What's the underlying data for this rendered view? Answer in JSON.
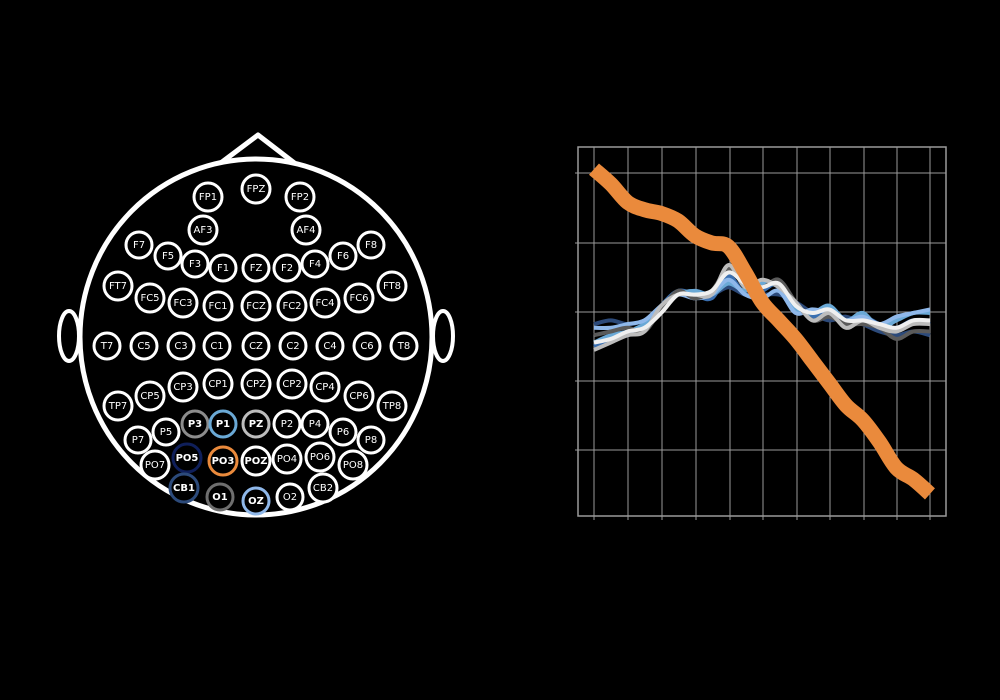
{
  "colors": {
    "background": "#000000",
    "head_outline": "#ffffff",
    "electrode_default": "#ffffff",
    "grid": "#9a9a9a",
    "accent_orange": "#ea8a3c"
  },
  "electrodes": [
    {
      "label": "FP1"
    },
    {
      "label": "FPZ"
    },
    {
      "label": "FP2"
    },
    {
      "label": "AF3"
    },
    {
      "label": "AF4"
    },
    {
      "label": "F7"
    },
    {
      "label": "F5"
    },
    {
      "label": "F3"
    },
    {
      "label": "F1"
    },
    {
      "label": "FZ"
    },
    {
      "label": "F2"
    },
    {
      "label": "F4"
    },
    {
      "label": "F6"
    },
    {
      "label": "F8"
    },
    {
      "label": "FT7"
    },
    {
      "label": "FC5"
    },
    {
      "label": "FC3"
    },
    {
      "label": "FC1"
    },
    {
      "label": "FCZ"
    },
    {
      "label": "FC2"
    },
    {
      "label": "FC4"
    },
    {
      "label": "FC6"
    },
    {
      "label": "FT8"
    },
    {
      "label": "T7"
    },
    {
      "label": "C5"
    },
    {
      "label": "C3"
    },
    {
      "label": "C1"
    },
    {
      "label": "CZ"
    },
    {
      "label": "C2"
    },
    {
      "label": "C4"
    },
    {
      "label": "C6"
    },
    {
      "label": "T8"
    },
    {
      "label": "TP7"
    },
    {
      "label": "CP5"
    },
    {
      "label": "CP3"
    },
    {
      "label": "CP1"
    },
    {
      "label": "CPZ"
    },
    {
      "label": "CP2"
    },
    {
      "label": "CP4"
    },
    {
      "label": "CP6"
    },
    {
      "label": "TP8"
    },
    {
      "label": "P7"
    },
    {
      "label": "P5"
    },
    {
      "label": "P3",
      "color": "#8c8c8c",
      "bold": true
    },
    {
      "label": "P1",
      "color": "#6aa9d6",
      "bold": true
    },
    {
      "label": "PZ",
      "color": "#bdbdbd",
      "bold": true
    },
    {
      "label": "P2"
    },
    {
      "label": "P4"
    },
    {
      "label": "P6"
    },
    {
      "label": "P8"
    },
    {
      "label": "PO7"
    },
    {
      "label": "PO5",
      "color": "#0f1f5a",
      "bold": true
    },
    {
      "label": "PO3",
      "color": "#ea8a3c",
      "bold": true
    },
    {
      "label": "POZ",
      "bold": true
    },
    {
      "label": "PO4"
    },
    {
      "label": "PO6"
    },
    {
      "label": "PO8"
    },
    {
      "label": "CB1",
      "color": "#2c4a7a",
      "bold": true
    },
    {
      "label": "O1",
      "color": "#6e6e6e",
      "bold": true
    },
    {
      "label": "OZ",
      "color": "#8fb8ea",
      "bold": true
    },
    {
      "label": "O2"
    },
    {
      "label": "CB2"
    }
  ],
  "chart_data": {
    "type": "line",
    "x_range": [
      0,
      1
    ],
    "y_range": [
      0,
      1
    ],
    "grid": true,
    "series": [
      {
        "color": "#2c4a7a",
        "width": 4,
        "x": [
          0,
          0.05,
          0.1,
          0.15,
          0.2,
          0.25,
          0.3,
          0.35,
          0.4,
          0.45,
          0.5,
          0.55,
          0.6,
          0.65,
          0.7,
          0.75,
          0.8,
          0.85,
          0.9,
          0.95,
          1.0
        ],
        "y": [
          0.52,
          0.53,
          0.52,
          0.53,
          0.56,
          0.6,
          0.61,
          0.6,
          0.62,
          0.6,
          0.6,
          0.6,
          0.58,
          0.55,
          0.53,
          0.54,
          0.52,
          0.5,
          0.49,
          0.5,
          0.49
        ]
      },
      {
        "color": "#3a6fb0",
        "width": 4,
        "x": [
          0,
          0.05,
          0.1,
          0.15,
          0.2,
          0.25,
          0.3,
          0.35,
          0.4,
          0.45,
          0.5,
          0.55,
          0.6,
          0.65,
          0.7,
          0.75,
          0.8,
          0.85,
          0.9,
          0.95,
          1.0
        ],
        "y": [
          0.46,
          0.48,
          0.49,
          0.51,
          0.57,
          0.61,
          0.6,
          0.59,
          0.65,
          0.6,
          0.61,
          0.63,
          0.57,
          0.54,
          0.56,
          0.52,
          0.54,
          0.52,
          0.51,
          0.53,
          0.52
        ]
      },
      {
        "color": "#6aa9d6",
        "width": 4,
        "x": [
          0,
          0.05,
          0.1,
          0.15,
          0.2,
          0.25,
          0.3,
          0.35,
          0.4,
          0.45,
          0.5,
          0.55,
          0.6,
          0.65,
          0.7,
          0.75,
          0.8,
          0.85,
          0.9,
          0.95,
          1.0
        ],
        "y": [
          0.47,
          0.49,
          0.5,
          0.52,
          0.56,
          0.6,
          0.61,
          0.6,
          0.63,
          0.61,
          0.63,
          0.62,
          0.56,
          0.55,
          0.57,
          0.53,
          0.55,
          0.51,
          0.53,
          0.55,
          0.55
        ]
      },
      {
        "color": "#8fb8ea",
        "width": 4,
        "x": [
          0,
          0.05,
          0.1,
          0.15,
          0.2,
          0.25,
          0.3,
          0.35,
          0.4,
          0.45,
          0.5,
          0.55,
          0.6,
          0.65,
          0.7,
          0.75,
          0.8,
          0.85,
          0.9,
          0.95,
          1.0
        ],
        "y": [
          0.51,
          0.51,
          0.52,
          0.53,
          0.57,
          0.6,
          0.59,
          0.6,
          0.64,
          0.6,
          0.59,
          0.61,
          0.55,
          0.56,
          0.55,
          0.53,
          0.54,
          0.52,
          0.54,
          0.55,
          0.56
        ]
      },
      {
        "color": "#5a5a5a",
        "width": 4,
        "x": [
          0,
          0.05,
          0.1,
          0.15,
          0.2,
          0.25,
          0.3,
          0.35,
          0.4,
          0.45,
          0.5,
          0.55,
          0.6,
          0.65,
          0.7,
          0.75,
          0.8,
          0.85,
          0.9,
          0.95,
          1.0
        ],
        "y": [
          0.49,
          0.5,
          0.51,
          0.5,
          0.56,
          0.61,
          0.59,
          0.61,
          0.67,
          0.64,
          0.62,
          0.64,
          0.58,
          0.53,
          0.54,
          0.52,
          0.52,
          0.51,
          0.48,
          0.5,
          0.5
        ]
      },
      {
        "color": "#bdbdbd",
        "width": 4,
        "x": [
          0,
          0.05,
          0.1,
          0.15,
          0.2,
          0.25,
          0.3,
          0.35,
          0.4,
          0.45,
          0.5,
          0.55,
          0.6,
          0.65,
          0.7,
          0.75,
          0.8,
          0.85,
          0.9,
          0.95,
          1.0
        ],
        "y": [
          0.45,
          0.47,
          0.49,
          0.5,
          0.57,
          0.6,
          0.6,
          0.6,
          0.68,
          0.62,
          0.64,
          0.62,
          0.58,
          0.53,
          0.55,
          0.51,
          0.53,
          0.51,
          0.5,
          0.52,
          0.52
        ]
      },
      {
        "color": "#f0f0f0",
        "width": 4,
        "x": [
          0,
          0.05,
          0.1,
          0.15,
          0.2,
          0.25,
          0.3,
          0.35,
          0.4,
          0.45,
          0.5,
          0.55,
          0.6,
          0.65,
          0.7,
          0.75,
          0.8,
          0.85,
          0.9,
          0.95,
          1.0
        ],
        "y": [
          0.47,
          0.48,
          0.5,
          0.51,
          0.55,
          0.6,
          0.6,
          0.61,
          0.66,
          0.63,
          0.62,
          0.63,
          0.57,
          0.55,
          0.56,
          0.53,
          0.53,
          0.52,
          0.51,
          0.53,
          0.53
        ]
      },
      {
        "color": "#ea8a3c",
        "width": 15,
        "x": [
          0,
          0.05,
          0.1,
          0.15,
          0.2,
          0.25,
          0.3,
          0.35,
          0.4,
          0.45,
          0.5,
          0.55,
          0.6,
          0.65,
          0.7,
          0.75,
          0.8,
          0.85,
          0.9,
          0.95,
          1.0
        ],
        "y": [
          0.94,
          0.9,
          0.85,
          0.83,
          0.82,
          0.8,
          0.76,
          0.74,
          0.73,
          0.66,
          0.58,
          0.53,
          0.48,
          0.42,
          0.36,
          0.3,
          0.26,
          0.2,
          0.13,
          0.1,
          0.06
        ]
      }
    ]
  }
}
